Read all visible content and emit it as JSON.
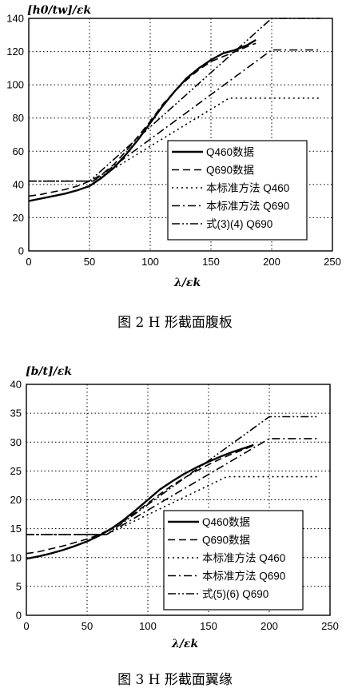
{
  "chart_data": [
    {
      "type": "line",
      "ylabel": "[h0/tw]/εk",
      "xlabel": "λ/εk",
      "caption": "图 2  H 形截面腹板",
      "xlim": [
        0,
        250
      ],
      "ylim": [
        0,
        140
      ],
      "xticks": [
        "0",
        "50",
        "100",
        "150",
        "200",
        "250"
      ],
      "yticks": [
        "0",
        "20",
        "40",
        "60",
        "80",
        "100",
        "120",
        "140"
      ],
      "grid": "dotted",
      "legend_position": "bottom-right",
      "series": [
        {
          "name": "Q460数据",
          "style": "solid",
          "width": 2.4,
          "x": [
            0,
            10,
            20,
            30,
            40,
            50,
            60,
            70,
            80,
            90,
            100,
            110,
            120,
            130,
            140,
            150,
            160,
            170,
            180,
            187
          ],
          "y": [
            30,
            31.5,
            33,
            34.5,
            36.5,
            39,
            44,
            50,
            58,
            67,
            77,
            87,
            96,
            104,
            110,
            115,
            119,
            121,
            124,
            127
          ]
        },
        {
          "name": "Q690数据",
          "style": "dashed",
          "width": 1.6,
          "x": [
            0,
            10,
            20,
            30,
            40,
            50,
            60,
            70,
            80,
            90,
            100,
            110,
            120,
            130,
            140,
            150,
            160,
            170,
            180,
            187
          ],
          "y": [
            33,
            34,
            35.5,
            37,
            39,
            42,
            46,
            52,
            60,
            69,
            78,
            88,
            96,
            103,
            109,
            114,
            117,
            120,
            123,
            125
          ]
        },
        {
          "name": "本标准方法 Q460",
          "style": "dotted",
          "width": 1.6,
          "x": [
            0,
            53,
            165,
            240
          ],
          "y": [
            42,
            42,
            92,
            92
          ]
        },
        {
          "name": "本标准方法 Q690",
          "style": "dashdot",
          "width": 1.6,
          "x": [
            0,
            53,
            200,
            240
          ],
          "y": [
            42,
            42,
            121,
            121
          ]
        },
        {
          "name": "式(3)(4) Q690",
          "style": "dashdotdot",
          "width": 1.6,
          "x": [
            0,
            50,
            200,
            240
          ],
          "y": [
            42,
            42,
            140,
            140
          ]
        }
      ]
    },
    {
      "type": "line",
      "ylabel": "[b/t]/εk",
      "xlabel": "λ/εk",
      "caption": "图 3  H 形截面翼缘",
      "xlim": [
        0,
        250
      ],
      "ylim": [
        0,
        40
      ],
      "xticks": [
        "0",
        "50",
        "100",
        "150",
        "200",
        "250"
      ],
      "yticks": [
        "0",
        "5",
        "10",
        "15",
        "20",
        "25",
        "30",
        "35",
        "40"
      ],
      "grid": "dotted",
      "legend_position": "bottom-right",
      "series": [
        {
          "name": "Q460数据",
          "style": "solid",
          "width": 2.4,
          "x": [
            0,
            10,
            20,
            30,
            40,
            50,
            60,
            70,
            80,
            90,
            100,
            110,
            120,
            130,
            140,
            150,
            160,
            170,
            180,
            187
          ],
          "y": [
            9.8,
            10.2,
            10.7,
            11.3,
            12,
            12.8,
            13.8,
            15,
            16.5,
            18.2,
            20,
            21.8,
            23.2,
            24.5,
            25.6,
            26.6,
            27.5,
            28.3,
            29,
            29.5
          ]
        },
        {
          "name": "Q690数据",
          "style": "dashed",
          "width": 1.6,
          "x": [
            0,
            10,
            20,
            30,
            40,
            50,
            60,
            70,
            80,
            90,
            100,
            110,
            120,
            130,
            140,
            150,
            160,
            170,
            180,
            187
          ],
          "y": [
            10.7,
            11,
            11.5,
            12,
            12.6,
            13.2,
            14,
            15,
            16.3,
            17.8,
            19.4,
            21,
            22.5,
            23.8,
            25,
            26.1,
            27.1,
            28,
            28.8,
            29.4
          ]
        },
        {
          "name": "本标准方法 Q460",
          "style": "dotted",
          "width": 1.6,
          "x": [
            0,
            66,
            165,
            240
          ],
          "y": [
            14,
            14,
            24,
            24
          ]
        },
        {
          "name": "本标准方法 Q690",
          "style": "dashdot",
          "width": 1.6,
          "x": [
            0,
            66,
            200,
            240
          ],
          "y": [
            14,
            14,
            30.6,
            30.6
          ]
        },
        {
          "name": "式(5)(6) Q690",
          "style": "dashdotdot",
          "width": 1.6,
          "x": [
            0,
            66,
            200,
            240
          ],
          "y": [
            14,
            14,
            34.4,
            34.4
          ]
        }
      ]
    }
  ]
}
